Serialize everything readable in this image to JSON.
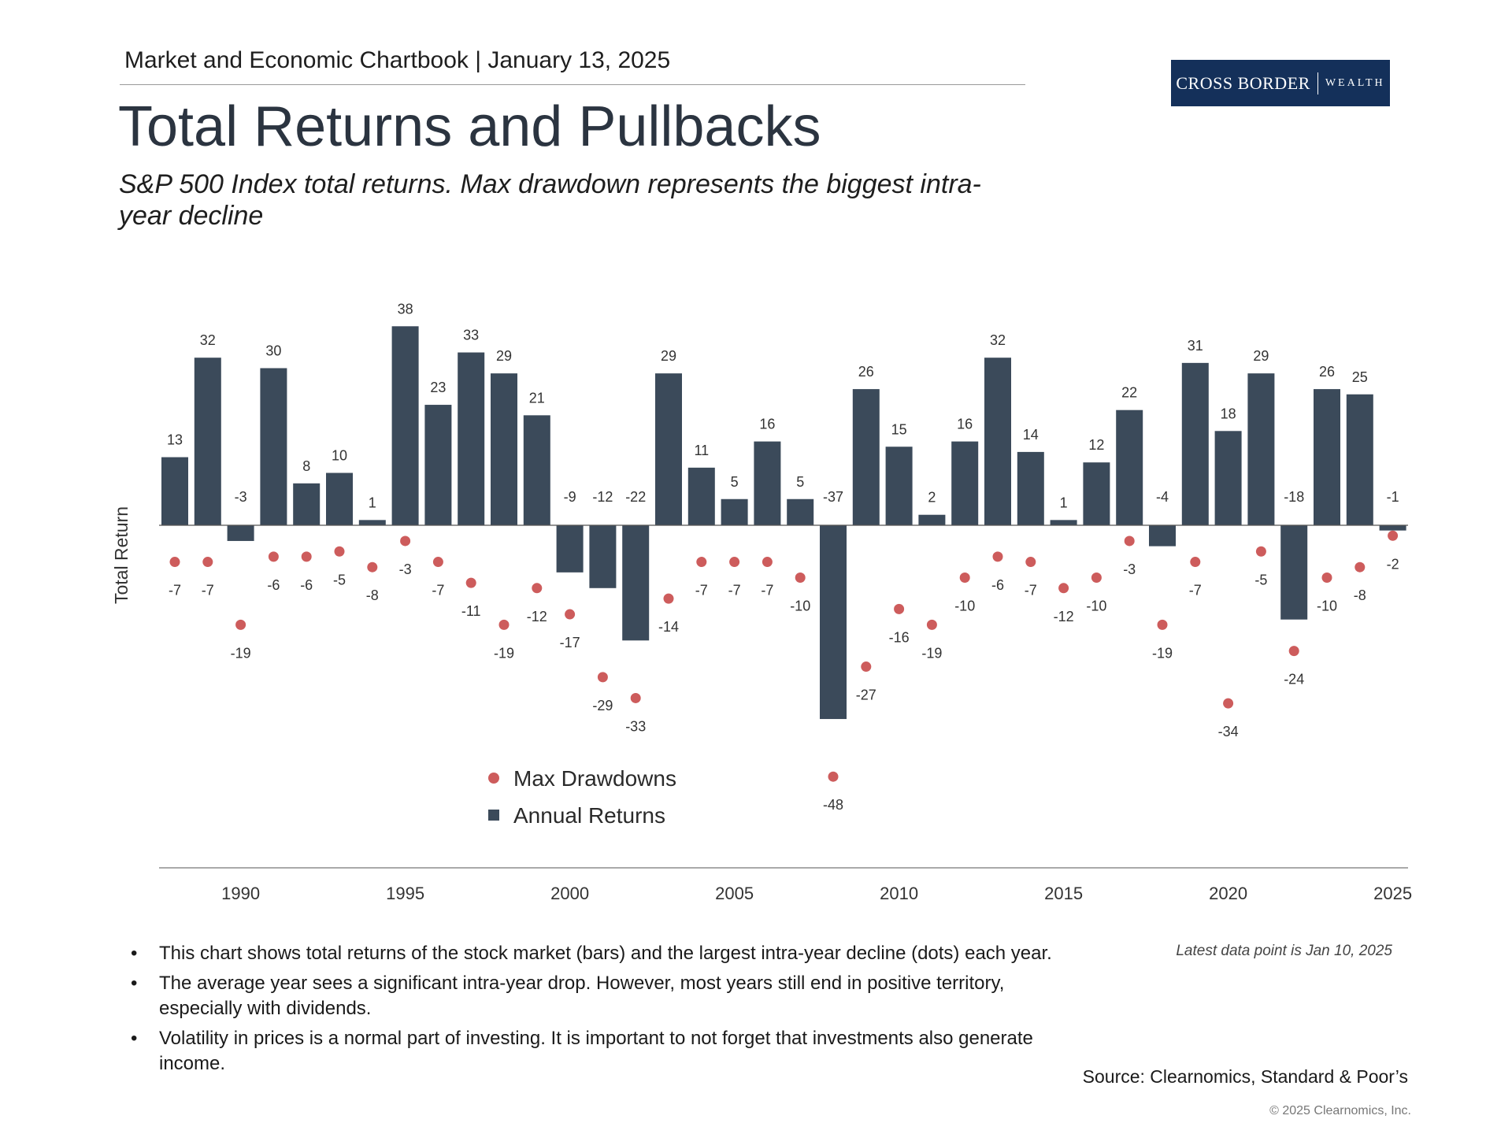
{
  "header": {
    "chartbook": "Market and Economic Chartbook | January 13, 2025",
    "logo_main": "CROSS BORDER",
    "logo_sub": "WEALTH"
  },
  "title": "Total Returns and Pullbacks",
  "subtitle": "S&P 500 Index total returns. Max drawdown represents the biggest intra-year decline",
  "colors": {
    "bar": "#3b4a5a",
    "dot": "#cd5c5c",
    "logo_bg": "#14305a"
  },
  "chart_data": {
    "type": "bar",
    "ylabel": "Total Return",
    "xlabel": "",
    "x": [
      1988,
      1989,
      1990,
      1991,
      1992,
      1993,
      1994,
      1995,
      1996,
      1997,
      1998,
      1999,
      2000,
      2001,
      2002,
      2003,
      2004,
      2005,
      2006,
      2007,
      2008,
      2009,
      2010,
      2011,
      2012,
      2013,
      2014,
      2015,
      2016,
      2017,
      2018,
      2019,
      2020,
      2021,
      2022,
      2023,
      2024,
      2025
    ],
    "x_ticks": [
      "1990",
      "1995",
      "2000",
      "2005",
      "2010",
      "2015",
      "2020",
      "2025"
    ],
    "ylim": [
      -52,
      40
    ],
    "series": [
      {
        "name": "Annual Returns",
        "kind": "bar",
        "values": [
          13,
          32,
          -3,
          30,
          8,
          10,
          1,
          38,
          23,
          33,
          29,
          21,
          -9,
          -12,
          -22,
          29,
          11,
          5,
          16,
          5,
          -37,
          26,
          15,
          2,
          16,
          32,
          14,
          1,
          12,
          22,
          -4,
          31,
          18,
          29,
          -18,
          26,
          25,
          -1
        ]
      },
      {
        "name": "Max Drawdowns",
        "kind": "scatter",
        "values": [
          -7,
          -7,
          -19,
          -6,
          -6,
          -5,
          -8,
          -3,
          -7,
          -11,
          -19,
          -12,
          -17,
          -29,
          -33,
          -14,
          -7,
          -7,
          -7,
          -10,
          -48,
          -27,
          -16,
          -19,
          -10,
          -6,
          -7,
          -12,
          -10,
          -3,
          -19,
          -7,
          -34,
          -5,
          -24,
          -10,
          -8,
          -2
        ]
      }
    ],
    "legend": {
      "position": "lower-left",
      "entries": [
        "Max Drawdowns",
        "Annual Returns"
      ]
    },
    "grid": false
  },
  "notes": {
    "bullets": [
      "This chart shows total returns of the stock market (bars) and the largest intra-year decline (dots) each year.",
      "The average year sees a significant intra-year drop. However, most years still end in positive territory, especially with dividends.",
      "Volatility in prices is a normal part of investing. It is important to not forget that investments also generate income."
    ],
    "bullet_symbol": "•",
    "latest": "Latest data point is Jan 10, 2025",
    "source": "Source: Clearnomics, Standard & Poor’s",
    "copyright": "© 2025 Clearnomics, Inc."
  }
}
